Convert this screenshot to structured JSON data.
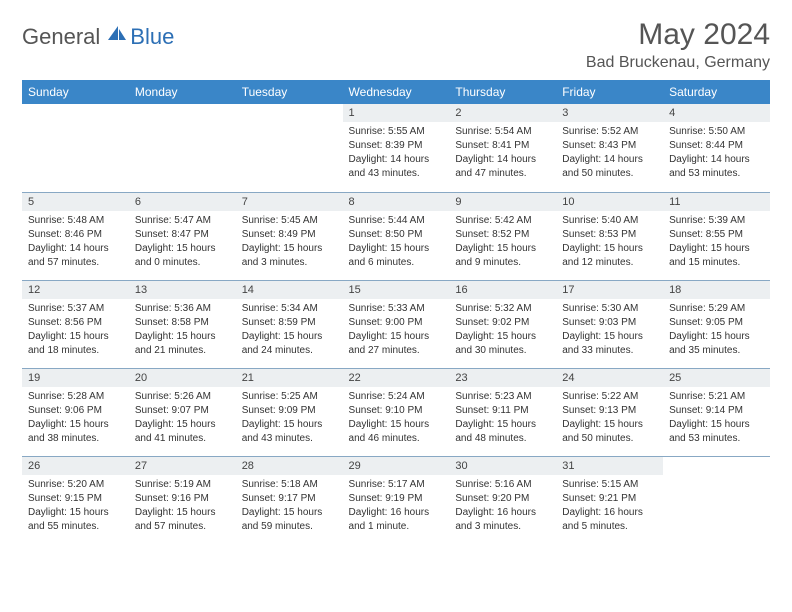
{
  "logo": {
    "part1": "General",
    "part2": "Blue"
  },
  "title": "May 2024",
  "location": "Bad Bruckenau, Germany",
  "colors": {
    "header_bg": "#3a86c8",
    "header_text": "#ffffff",
    "daynum_bg": "#eceff1",
    "border": "#88a8c4",
    "logo_accent": "#2c6fb5",
    "text_muted": "#555555"
  },
  "weekdays": [
    "Sunday",
    "Monday",
    "Tuesday",
    "Wednesday",
    "Thursday",
    "Friday",
    "Saturday"
  ],
  "weeks": [
    [
      null,
      null,
      null,
      {
        "n": "1",
        "sr": "5:55 AM",
        "ss": "8:39 PM",
        "dl": "14 hours and 43 minutes."
      },
      {
        "n": "2",
        "sr": "5:54 AM",
        "ss": "8:41 PM",
        "dl": "14 hours and 47 minutes."
      },
      {
        "n": "3",
        "sr": "5:52 AM",
        "ss": "8:43 PM",
        "dl": "14 hours and 50 minutes."
      },
      {
        "n": "4",
        "sr": "5:50 AM",
        "ss": "8:44 PM",
        "dl": "14 hours and 53 minutes."
      }
    ],
    [
      {
        "n": "5",
        "sr": "5:48 AM",
        "ss": "8:46 PM",
        "dl": "14 hours and 57 minutes."
      },
      {
        "n": "6",
        "sr": "5:47 AM",
        "ss": "8:47 PM",
        "dl": "15 hours and 0 minutes."
      },
      {
        "n": "7",
        "sr": "5:45 AM",
        "ss": "8:49 PM",
        "dl": "15 hours and 3 minutes."
      },
      {
        "n": "8",
        "sr": "5:44 AM",
        "ss": "8:50 PM",
        "dl": "15 hours and 6 minutes."
      },
      {
        "n": "9",
        "sr": "5:42 AM",
        "ss": "8:52 PM",
        "dl": "15 hours and 9 minutes."
      },
      {
        "n": "10",
        "sr": "5:40 AM",
        "ss": "8:53 PM",
        "dl": "15 hours and 12 minutes."
      },
      {
        "n": "11",
        "sr": "5:39 AM",
        "ss": "8:55 PM",
        "dl": "15 hours and 15 minutes."
      }
    ],
    [
      {
        "n": "12",
        "sr": "5:37 AM",
        "ss": "8:56 PM",
        "dl": "15 hours and 18 minutes."
      },
      {
        "n": "13",
        "sr": "5:36 AM",
        "ss": "8:58 PM",
        "dl": "15 hours and 21 minutes."
      },
      {
        "n": "14",
        "sr": "5:34 AM",
        "ss": "8:59 PM",
        "dl": "15 hours and 24 minutes."
      },
      {
        "n": "15",
        "sr": "5:33 AM",
        "ss": "9:00 PM",
        "dl": "15 hours and 27 minutes."
      },
      {
        "n": "16",
        "sr": "5:32 AM",
        "ss": "9:02 PM",
        "dl": "15 hours and 30 minutes."
      },
      {
        "n": "17",
        "sr": "5:30 AM",
        "ss": "9:03 PM",
        "dl": "15 hours and 33 minutes."
      },
      {
        "n": "18",
        "sr": "5:29 AM",
        "ss": "9:05 PM",
        "dl": "15 hours and 35 minutes."
      }
    ],
    [
      {
        "n": "19",
        "sr": "5:28 AM",
        "ss": "9:06 PM",
        "dl": "15 hours and 38 minutes."
      },
      {
        "n": "20",
        "sr": "5:26 AM",
        "ss": "9:07 PM",
        "dl": "15 hours and 41 minutes."
      },
      {
        "n": "21",
        "sr": "5:25 AM",
        "ss": "9:09 PM",
        "dl": "15 hours and 43 minutes."
      },
      {
        "n": "22",
        "sr": "5:24 AM",
        "ss": "9:10 PM",
        "dl": "15 hours and 46 minutes."
      },
      {
        "n": "23",
        "sr": "5:23 AM",
        "ss": "9:11 PM",
        "dl": "15 hours and 48 minutes."
      },
      {
        "n": "24",
        "sr": "5:22 AM",
        "ss": "9:13 PM",
        "dl": "15 hours and 50 minutes."
      },
      {
        "n": "25",
        "sr": "5:21 AM",
        "ss": "9:14 PM",
        "dl": "15 hours and 53 minutes."
      }
    ],
    [
      {
        "n": "26",
        "sr": "5:20 AM",
        "ss": "9:15 PM",
        "dl": "15 hours and 55 minutes."
      },
      {
        "n": "27",
        "sr": "5:19 AM",
        "ss": "9:16 PM",
        "dl": "15 hours and 57 minutes."
      },
      {
        "n": "28",
        "sr": "5:18 AM",
        "ss": "9:17 PM",
        "dl": "15 hours and 59 minutes."
      },
      {
        "n": "29",
        "sr": "5:17 AM",
        "ss": "9:19 PM",
        "dl": "16 hours and 1 minute."
      },
      {
        "n": "30",
        "sr": "5:16 AM",
        "ss": "9:20 PM",
        "dl": "16 hours and 3 minutes."
      },
      {
        "n": "31",
        "sr": "5:15 AM",
        "ss": "9:21 PM",
        "dl": "16 hours and 5 minutes."
      },
      null
    ]
  ],
  "labels": {
    "sunrise": "Sunrise: ",
    "sunset": "Sunset: ",
    "daylight": "Daylight: "
  }
}
